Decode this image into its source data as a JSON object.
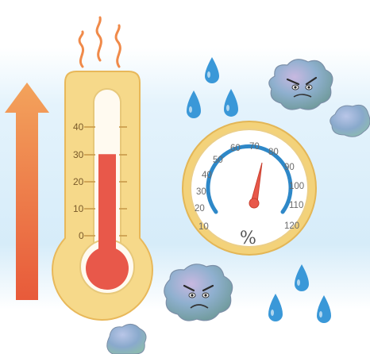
{
  "illustration": {
    "thermometer": {
      "scale_labels": [
        "40",
        "30",
        "20",
        "10",
        "0"
      ],
      "mercury_level": 30
    },
    "hygrometer": {
      "dial_labels": [
        "10",
        "20",
        "30",
        "40",
        "50",
        "60",
        "70",
        "80",
        "90",
        "100",
        "110",
        "120"
      ],
      "unit_symbol": "%",
      "needle_value": 70
    },
    "icons": [
      "heat-wave-icon",
      "rising-arrow-icon",
      "water-drop-icon",
      "angry-mold-cloud-icon"
    ],
    "colors": {
      "sky_band": "#d8eefa",
      "arrow": "#ef7a4a",
      "mercury": "#e8584a",
      "thermo_frame": "#f6d98a",
      "dial_ring": "#f3d27a",
      "dial_arc": "#2e88c8",
      "droplet": "#3a98d8",
      "mold": "#8aa8c8"
    }
  }
}
